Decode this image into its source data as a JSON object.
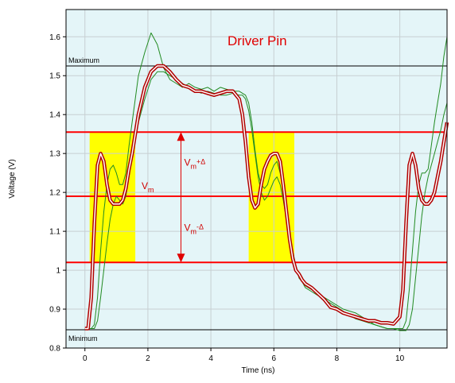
{
  "chart_data": {
    "type": "line",
    "title": "Driver Pin",
    "xlabel": "Time (ns)",
    "ylabel": "Voltage (V)",
    "xlim": [
      -0.6,
      11.5
    ],
    "ylim": [
      0.8,
      1.67
    ],
    "x_ticks": [
      0,
      2,
      4,
      6,
      8,
      10
    ],
    "y_ticks": [
      0.8,
      0.9,
      1,
      1.1,
      1.2,
      1.3,
      1.4,
      1.5,
      1.6
    ],
    "grid": true,
    "background": "#e4f5f8",
    "levels": [
      {
        "label": "Maximum",
        "y": 1.525,
        "color": "#000000"
      },
      {
        "label": "Minimum",
        "y": 0.847,
        "color": "#000000"
      }
    ],
    "threshold_lines": {
      "upper": 1.355,
      "mid": 1.19,
      "lower": 1.02,
      "color": "#ff0000"
    },
    "highlight_bands": [
      {
        "x": [
          0.15,
          1.6
        ],
        "color": "#ffff00"
      },
      {
        "x": [
          5.2,
          6.65
        ],
        "color": "#ffff00"
      }
    ],
    "annotations": {
      "vm": {
        "main": "V",
        "sub": "m"
      },
      "vm_plus": {
        "main": "V",
        "sub": "m",
        "suffix": "+Δ"
      },
      "vm_minus": {
        "main": "V",
        "sub": "m",
        "suffix": "-Δ"
      },
      "arrow_x": 3.05
    },
    "series": [
      {
        "color": "#b00000",
        "style": "double",
        "x": [
          0,
          0.1,
          0.2,
          0.3,
          0.4,
          0.5,
          0.6,
          0.7,
          0.8,
          0.9,
          1.0,
          1.1,
          1.2,
          1.3,
          1.4,
          1.5,
          1.7,
          1.9,
          2.1,
          2.3,
          2.5,
          2.7,
          2.9,
          3.1,
          3.3,
          3.5,
          3.7,
          3.9,
          4.1,
          4.3,
          4.5,
          4.7,
          4.9,
          5.0,
          5.1,
          5.2,
          5.3,
          5.4,
          5.5,
          5.6,
          5.7,
          5.8,
          5.9,
          6.0,
          6.1,
          6.2,
          6.3,
          6.4,
          6.5,
          6.6,
          6.7,
          6.8,
          6.9,
          7.0,
          7.2,
          7.4,
          7.6,
          7.8,
          8.0,
          8.2,
          8.4,
          8.6,
          8.8,
          9.0,
          9.2,
          9.4,
          9.6,
          9.8,
          10.0,
          10.1,
          10.2,
          10.3,
          10.4,
          10.5,
          10.6,
          10.7,
          10.8,
          10.9,
          11.0,
          11.1,
          11.2,
          11.3,
          11.4,
          11.5
        ],
        "y": [
          0.85,
          0.85,
          0.93,
          1.12,
          1.27,
          1.3,
          1.28,
          1.22,
          1.18,
          1.17,
          1.17,
          1.17,
          1.18,
          1.21,
          1.26,
          1.3,
          1.4,
          1.47,
          1.51,
          1.525,
          1.525,
          1.51,
          1.49,
          1.475,
          1.47,
          1.46,
          1.46,
          1.455,
          1.45,
          1.455,
          1.46,
          1.46,
          1.44,
          1.4,
          1.33,
          1.24,
          1.18,
          1.16,
          1.17,
          1.22,
          1.26,
          1.28,
          1.295,
          1.3,
          1.3,
          1.28,
          1.22,
          1.15,
          1.08,
          1.03,
          1.0,
          0.99,
          0.975,
          0.965,
          0.955,
          0.94,
          0.925,
          0.905,
          0.9,
          0.89,
          0.885,
          0.88,
          0.875,
          0.87,
          0.87,
          0.865,
          0.865,
          0.862,
          0.88,
          0.95,
          1.12,
          1.27,
          1.3,
          1.27,
          1.21,
          1.18,
          1.17,
          1.17,
          1.18,
          1.2,
          1.24,
          1.28,
          1.33,
          1.38
        ]
      },
      {
        "color": "#228b22",
        "style": "thin",
        "x": [
          0,
          0.1,
          0.2,
          0.3,
          0.4,
          0.5,
          0.6,
          0.7,
          0.8,
          0.9,
          1.0,
          1.1,
          1.2,
          1.3,
          1.4,
          1.5,
          1.7,
          1.9,
          2.1,
          2.3,
          2.5,
          2.7,
          2.9,
          3.1,
          3.3,
          3.5,
          3.7,
          3.9,
          4.1,
          4.3,
          4.5,
          4.7,
          4.9,
          5.0,
          5.1,
          5.2,
          5.3,
          5.4,
          5.5,
          5.6,
          5.7,
          5.8,
          5.9,
          6.0,
          6.1,
          6.2,
          6.3,
          6.4,
          6.5,
          6.6,
          6.7,
          6.8,
          6.9,
          7.0,
          7.2,
          7.4,
          7.6,
          7.8,
          8.0,
          8.2,
          8.4,
          8.6,
          8.8,
          9.0,
          9.2,
          9.4,
          9.6,
          9.8,
          10.0,
          10.1,
          10.2,
          10.3,
          10.4,
          10.5,
          10.6,
          10.7,
          10.8,
          10.9,
          11.0,
          11.1,
          11.2,
          11.3,
          11.4,
          11.5
        ],
        "y": [
          0.85,
          0.85,
          0.85,
          0.86,
          0.93,
          1.05,
          1.15,
          1.22,
          1.26,
          1.27,
          1.25,
          1.22,
          1.22,
          1.25,
          1.32,
          1.38,
          1.5,
          1.56,
          1.61,
          1.58,
          1.52,
          1.49,
          1.48,
          1.47,
          1.48,
          1.47,
          1.465,
          1.47,
          1.46,
          1.47,
          1.465,
          1.46,
          1.46,
          1.455,
          1.45,
          1.43,
          1.38,
          1.31,
          1.25,
          1.22,
          1.21,
          1.22,
          1.25,
          1.27,
          1.28,
          1.25,
          1.2,
          1.14,
          1.09,
          1.05,
          1.01,
          0.98,
          0.97,
          0.96,
          0.95,
          0.94,
          0.93,
          0.92,
          0.91,
          0.9,
          0.895,
          0.89,
          0.88,
          0.87,
          0.86,
          0.855,
          0.85,
          0.85,
          0.85,
          0.85,
          0.87,
          0.95,
          1.05,
          1.15,
          1.22,
          1.25,
          1.25,
          1.26,
          1.32,
          1.38,
          1.43,
          1.48,
          1.55,
          1.6
        ]
      },
      {
        "color": "#228b22",
        "style": "thin",
        "x": [
          0,
          0.1,
          0.2,
          0.3,
          0.4,
          0.5,
          0.6,
          0.7,
          0.8,
          0.9,
          1.0,
          1.1,
          1.2,
          1.3,
          1.4,
          1.5,
          1.7,
          1.9,
          2.1,
          2.3,
          2.5,
          2.7,
          2.9,
          3.1,
          3.3,
          3.5,
          3.7,
          3.9,
          4.1,
          4.3,
          4.5,
          4.7,
          4.9,
          5.0,
          5.1,
          5.2,
          5.3,
          5.4,
          5.5,
          5.6,
          5.7,
          5.8,
          5.9,
          6.0,
          6.1,
          6.2,
          6.3,
          6.4,
          6.5,
          6.6,
          6.7,
          6.8,
          6.9,
          7.0,
          7.2,
          7.4,
          7.6,
          7.8,
          8.0,
          8.2,
          8.4,
          8.6,
          8.8,
          9.0,
          9.2,
          9.4,
          9.6,
          9.8,
          10.0,
          10.1,
          10.2,
          10.3,
          10.4,
          10.5,
          10.6,
          10.7,
          10.8,
          10.9,
          11.0,
          11.1,
          11.2,
          11.3,
          11.4,
          11.5
        ],
        "y": [
          0.85,
          0.85,
          0.85,
          0.85,
          0.87,
          0.93,
          1.0,
          1.07,
          1.13,
          1.17,
          1.19,
          1.18,
          1.17,
          1.19,
          1.24,
          1.3,
          1.38,
          1.44,
          1.49,
          1.51,
          1.51,
          1.5,
          1.49,
          1.48,
          1.47,
          1.46,
          1.455,
          1.46,
          1.455,
          1.45,
          1.45,
          1.455,
          1.45,
          1.45,
          1.44,
          1.41,
          1.36,
          1.3,
          1.24,
          1.2,
          1.18,
          1.19,
          1.21,
          1.23,
          1.24,
          1.22,
          1.18,
          1.13,
          1.08,
          1.04,
          1.01,
          0.99,
          0.97,
          0.955,
          0.945,
          0.935,
          0.925,
          0.915,
          0.905,
          0.895,
          0.885,
          0.875,
          0.87,
          0.865,
          0.86,
          0.855,
          0.85,
          0.85,
          0.845,
          0.845,
          0.845,
          0.86,
          0.9,
          0.98,
          1.06,
          1.14,
          1.2,
          1.24,
          1.27,
          1.3,
          1.33,
          1.36,
          1.4,
          1.43
        ]
      }
    ]
  }
}
